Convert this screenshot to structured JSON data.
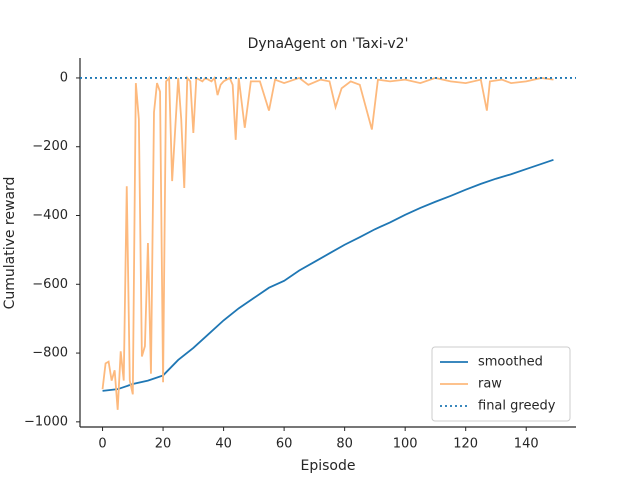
{
  "chart_data": {
    "type": "line",
    "title": "DynaAgent on 'Taxi-v2'",
    "xlabel": "Episode",
    "ylabel": "Cumulative reward",
    "series": [
      {
        "name": "smoothed",
        "color": "#1f77b4",
        "x": [
          0,
          5,
          10,
          15,
          20,
          25,
          30,
          35,
          40,
          45,
          50,
          55,
          60,
          65,
          70,
          75,
          80,
          85,
          90,
          95,
          100,
          105,
          110,
          115,
          120,
          125,
          130,
          135,
          140,
          145,
          149
        ],
        "values": [
          -910,
          -905,
          -890,
          -880,
          -865,
          -820,
          -785,
          -745,
          -705,
          -670,
          -640,
          -610,
          -590,
          -560,
          -535,
          -510,
          -485,
          -463,
          -440,
          -420,
          -398,
          -378,
          -360,
          -343,
          -325,
          -308,
          -293,
          -280,
          -265,
          -250,
          -238
        ]
      },
      {
        "name": "raw",
        "color": "#fdb97d",
        "x": [
          0,
          1,
          2,
          3,
          4,
          5,
          6,
          7,
          8,
          9,
          10,
          11,
          12,
          13,
          14,
          15,
          16,
          17,
          18,
          19,
          20,
          21,
          22,
          23,
          24,
          25,
          26,
          27,
          28,
          29,
          30,
          31,
          32,
          33,
          34,
          35,
          36,
          37,
          38,
          39,
          40,
          41,
          42,
          43,
          44,
          45,
          47,
          49,
          52,
          55,
          57,
          60,
          65,
          68,
          72,
          75,
          77,
          79,
          82,
          85,
          89,
          91,
          95,
          100,
          105,
          110,
          115,
          120,
          125,
          127,
          128,
          132,
          135,
          140,
          145,
          149
        ],
        "values": [
          -905,
          -830,
          -825,
          -880,
          -850,
          -965,
          -795,
          -880,
          -315,
          -880,
          -920,
          -15,
          -120,
          -810,
          -780,
          -480,
          -860,
          -100,
          -15,
          -40,
          -885,
          -10,
          0,
          -300,
          -150,
          0,
          -120,
          -320,
          0,
          -10,
          -160,
          0,
          -5,
          -10,
          0,
          -5,
          -10,
          0,
          -50,
          -20,
          -10,
          -5,
          0,
          -20,
          -180,
          0,
          -145,
          -10,
          -10,
          -95,
          -5,
          -15,
          0,
          -20,
          -5,
          -10,
          -85,
          -30,
          -10,
          -20,
          -150,
          -5,
          -10,
          -5,
          -15,
          0,
          -10,
          -15,
          -5,
          -95,
          -10,
          -5,
          -15,
          -10,
          0,
          -5
        ]
      }
    ],
    "hline": {
      "name": "final greedy",
      "value": 0,
      "color": "#1f77b4"
    },
    "xlim": [
      -7.45,
      156.45
    ],
    "ylim": [
      -1015,
      58
    ],
    "xticks": [
      0,
      20,
      40,
      60,
      80,
      100,
      120,
      140
    ],
    "yticks": [
      {
        "value": -1000,
        "label": "−1000"
      },
      {
        "value": -800,
        "label": "−800"
      },
      {
        "value": -600,
        "label": "−600"
      },
      {
        "value": -400,
        "label": "−400"
      },
      {
        "value": -200,
        "label": "−200"
      },
      0
    ],
    "legend": "lower right",
    "grid": false
  }
}
